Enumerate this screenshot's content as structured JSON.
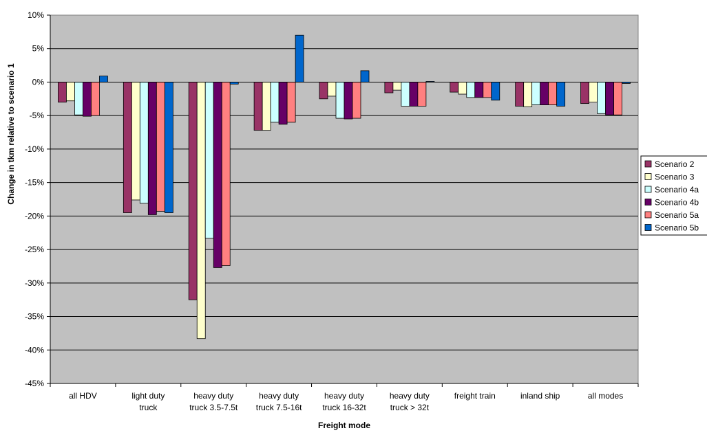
{
  "chart_data": {
    "type": "bar",
    "title": "",
    "xlabel": "Freight mode",
    "ylabel": "Change in tkm relative to scenario 1",
    "ylim": [
      -45,
      10
    ],
    "ytick_step": 5,
    "ytick_suffix": "%",
    "grid": true,
    "legend_position": "right",
    "plot_background": "#c0c0c0",
    "categories": [
      [
        "all HDV"
      ],
      [
        "light duty",
        "truck"
      ],
      [
        "heavy duty",
        "truck 3.5-7.5t"
      ],
      [
        "heavy duty",
        "truck 7.5-16t"
      ],
      [
        "heavy duty",
        "truck 16-32t"
      ],
      [
        "heavy duty",
        "truck > 32t"
      ],
      [
        "freight train"
      ],
      [
        "inland ship"
      ],
      [
        "all modes"
      ]
    ],
    "series": [
      {
        "name": "Scenario 2",
        "color": "#993366",
        "values": [
          -3.0,
          -19.5,
          -32.5,
          -7.2,
          -2.5,
          -1.6,
          -1.5,
          -3.6,
          -3.2
        ]
      },
      {
        "name": "Scenario 3",
        "color": "#ffffcc",
        "values": [
          -2.8,
          -17.6,
          -38.3,
          -7.2,
          -2.1,
          -1.2,
          -1.8,
          -3.7,
          -3.0
        ]
      },
      {
        "name": "Scenario 4a",
        "color": "#ccffff",
        "values": [
          -4.9,
          -18.1,
          -23.3,
          -6.0,
          -5.4,
          -3.6,
          -2.3,
          -3.4,
          -4.7
        ]
      },
      {
        "name": "Scenario 4b",
        "color": "#660066",
        "values": [
          -5.1,
          -19.8,
          -27.7,
          -6.3,
          -5.5,
          -3.6,
          -2.3,
          -3.4,
          -4.9
        ]
      },
      {
        "name": "Scenario 5a",
        "color": "#ff8080",
        "values": [
          -5.0,
          -19.3,
          -27.4,
          -6.0,
          -5.4,
          -3.6,
          -2.3,
          -3.4,
          -4.9
        ]
      },
      {
        "name": "Scenario 5b",
        "color": "#0066cc",
        "values": [
          0.9,
          -19.5,
          -0.3,
          7.0,
          1.7,
          0.1,
          -2.7,
          -3.6,
          -0.2
        ]
      }
    ]
  }
}
